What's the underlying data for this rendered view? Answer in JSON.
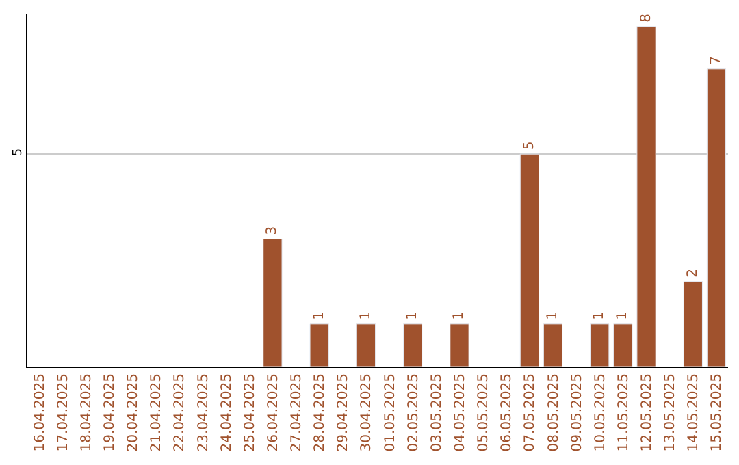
{
  "chart_data": {
    "type": "bar",
    "categories": [
      "16.04.2025",
      "17.04.2025",
      "18.04.2025",
      "19.04.2025",
      "20.04.2025",
      "21.04.2025",
      "22.04.2025",
      "23.04.2025",
      "24.04.2025",
      "25.04.2025",
      "26.04.2025",
      "27.04.2025",
      "28.04.2025",
      "29.04.2025",
      "30.04.2025",
      "01.05.2025",
      "02.05.2025",
      "03.05.2025",
      "04.05.2025",
      "05.05.2025",
      "06.05.2025",
      "07.05.2025",
      "08.05.2025",
      "09.05.2025",
      "10.05.2025",
      "11.05.2025",
      "12.05.2025",
      "13.05.2025",
      "14.05.2025",
      "15.05.2025"
    ],
    "values": [
      null,
      null,
      null,
      null,
      null,
      null,
      null,
      null,
      null,
      null,
      3,
      null,
      1,
      null,
      1,
      null,
      1,
      null,
      1,
      null,
      null,
      5,
      1,
      null,
      1,
      1,
      8,
      null,
      2,
      7
    ],
    "value_labels": [
      null,
      null,
      null,
      null,
      null,
      null,
      null,
      null,
      null,
      null,
      "3",
      null,
      "1",
      null,
      "1",
      null,
      "1",
      null,
      "1",
      null,
      null,
      "5",
      "1",
      null,
      "1",
      "1",
      "8",
      null,
      "2",
      "7"
    ],
    "color": "#a0522d",
    "ylim": [
      0,
      8.3
    ],
    "yticks": [
      5
    ],
    "grid": "y"
  }
}
